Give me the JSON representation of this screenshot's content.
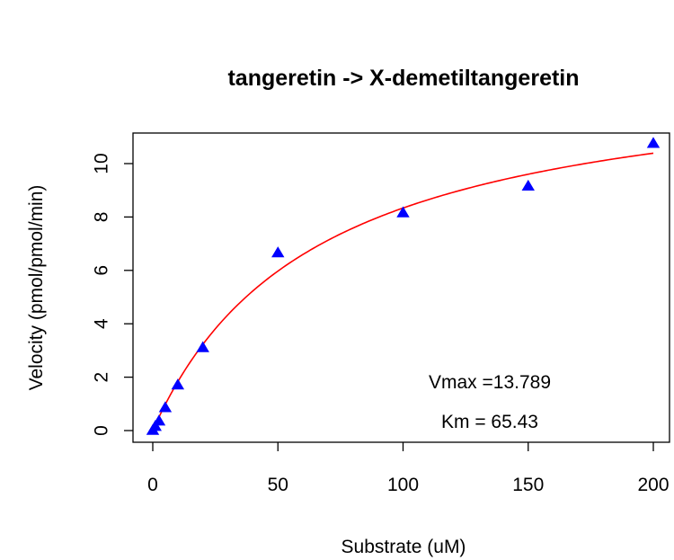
{
  "chart_data": {
    "type": "scatter",
    "title": "tangeretin -> X-demetiltangeretin",
    "xlabel": "Substrate (uM)",
    "ylabel": "Velocity (pmol/pmol/min)",
    "xlim": [
      0,
      200
    ],
    "ylim": [
      0,
      10.7
    ],
    "xticks": [
      0,
      50,
      100,
      150,
      200
    ],
    "yticks": [
      0,
      2,
      4,
      6,
      8,
      10
    ],
    "grid": false,
    "series": [
      {
        "type": "scatter",
        "marker": "triangle",
        "color": "#0000ff",
        "x": [
          0,
          1,
          2.5,
          5,
          10,
          20,
          50,
          100,
          150,
          200
        ],
        "y": [
          0.0,
          0.15,
          0.35,
          0.85,
          1.7,
          3.1,
          6.65,
          8.15,
          9.15,
          10.75
        ]
      },
      {
        "type": "line",
        "color": "#ff0000",
        "model": "michaelis-menten",
        "vmax": 13.789,
        "km": 65.43,
        "x_range": [
          0,
          200
        ]
      }
    ],
    "annotations": [
      "Vmax =13.789",
      "Km =  65.43"
    ]
  }
}
